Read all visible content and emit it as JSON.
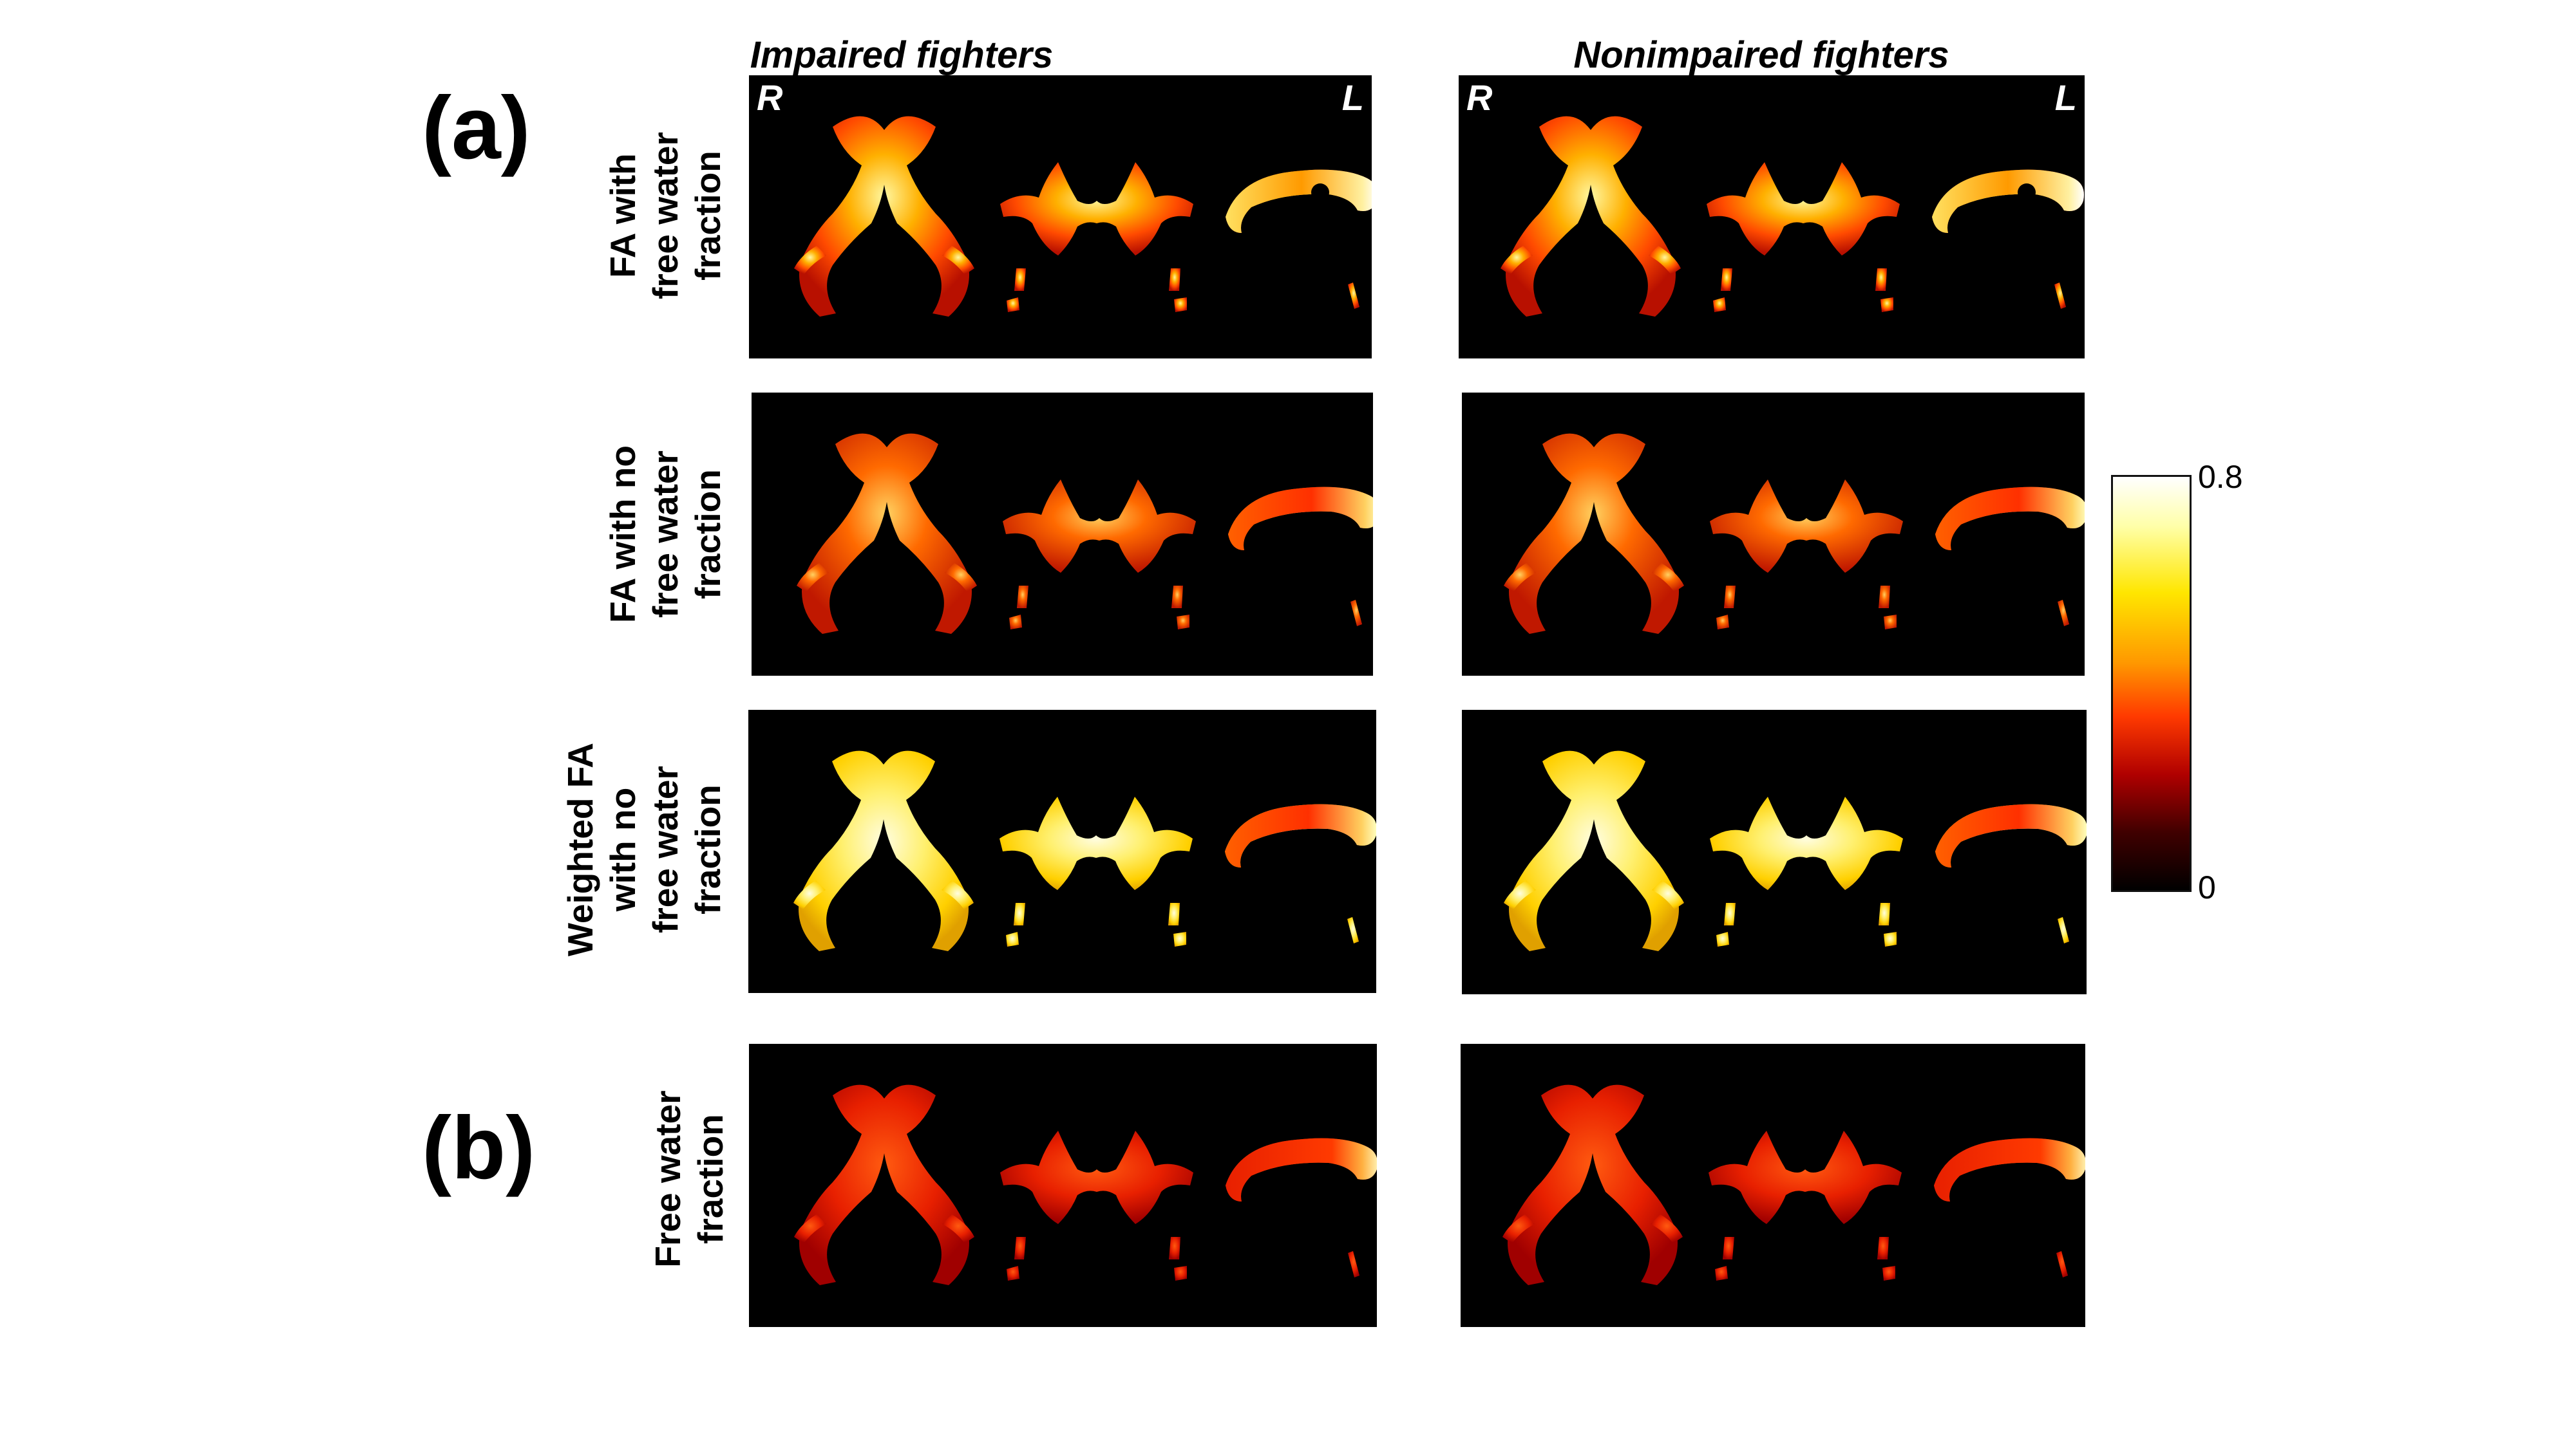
{
  "columns": {
    "left": "Impaired fighters",
    "right": "Nonimpaired fighters"
  },
  "panel_labels": {
    "a": "(a)",
    "b": "(b)"
  },
  "rows": [
    {
      "lines": [
        "FA with",
        "free water",
        "fraction"
      ]
    },
    {
      "lines": [
        "FA with no",
        "free water",
        "fraction"
      ]
    },
    {
      "lines": [
        "Weighted FA",
        "with no",
        "free water",
        "fraction"
      ]
    },
    {
      "lines": [
        "Free water",
        "fraction"
      ]
    }
  ],
  "orientation": {
    "right": "R",
    "left": "L"
  },
  "colorbar": {
    "max": "0.8",
    "min": "0",
    "colormap": "hot (black-red-yellow-white)"
  },
  "colors": {
    "background": "#ffffff",
    "panel": "#000000"
  }
}
